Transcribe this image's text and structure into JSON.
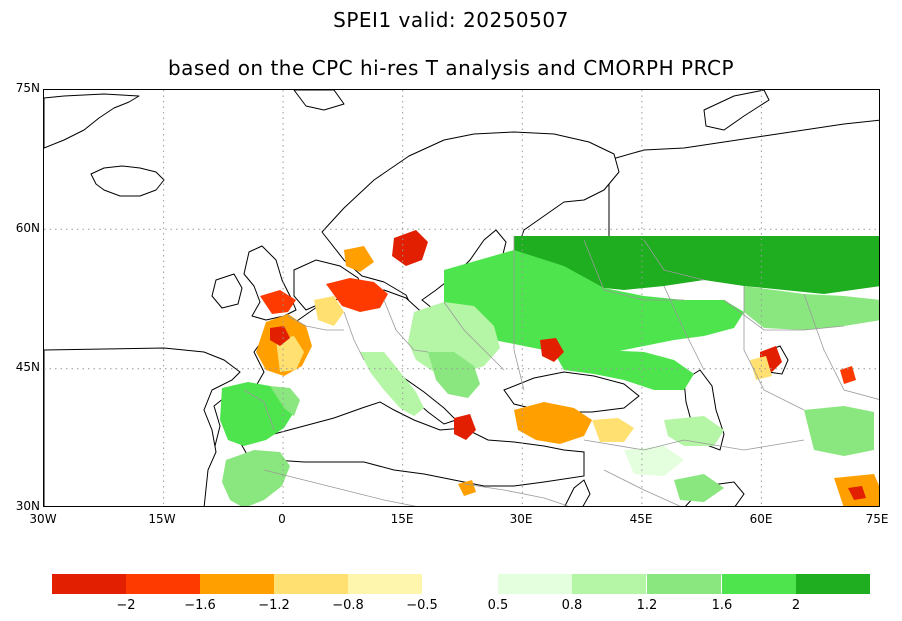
{
  "title_line1": "SPEI1  valid: 20250507",
  "title_line2": "based on the CPC hi-res T analysis and CMORPH PRCP",
  "map": {
    "lat_labels": [
      "75N",
      "60N",
      "45N",
      "30N"
    ],
    "lon_labels": [
      "30W",
      "15W",
      "0",
      "15E",
      "30E",
      "45E",
      "60E",
      "75E"
    ],
    "extent": {
      "lon_min": -30,
      "lon_max": 75,
      "lat_min": 30,
      "lat_max": 75
    }
  },
  "legend": {
    "colors": [
      "#e21f00",
      "#ff3a00",
      "#ffa000",
      "#ffe071",
      "#fff6ad",
      "#ffffff",
      "#e4ffdd",
      "#b5f5a6",
      "#8ae67f",
      "#4ee44e",
      "#1fae1f"
    ],
    "labels": [
      "−2",
      "−1.6",
      "−1.2",
      "−0.8",
      "−0.5",
      "0.5",
      "0.8",
      "1.2",
      "1.6",
      "2"
    ]
  },
  "colors": {
    "land_outline": "#000000",
    "borders": "#9a9a9a",
    "gridlines": "#999999"
  }
}
